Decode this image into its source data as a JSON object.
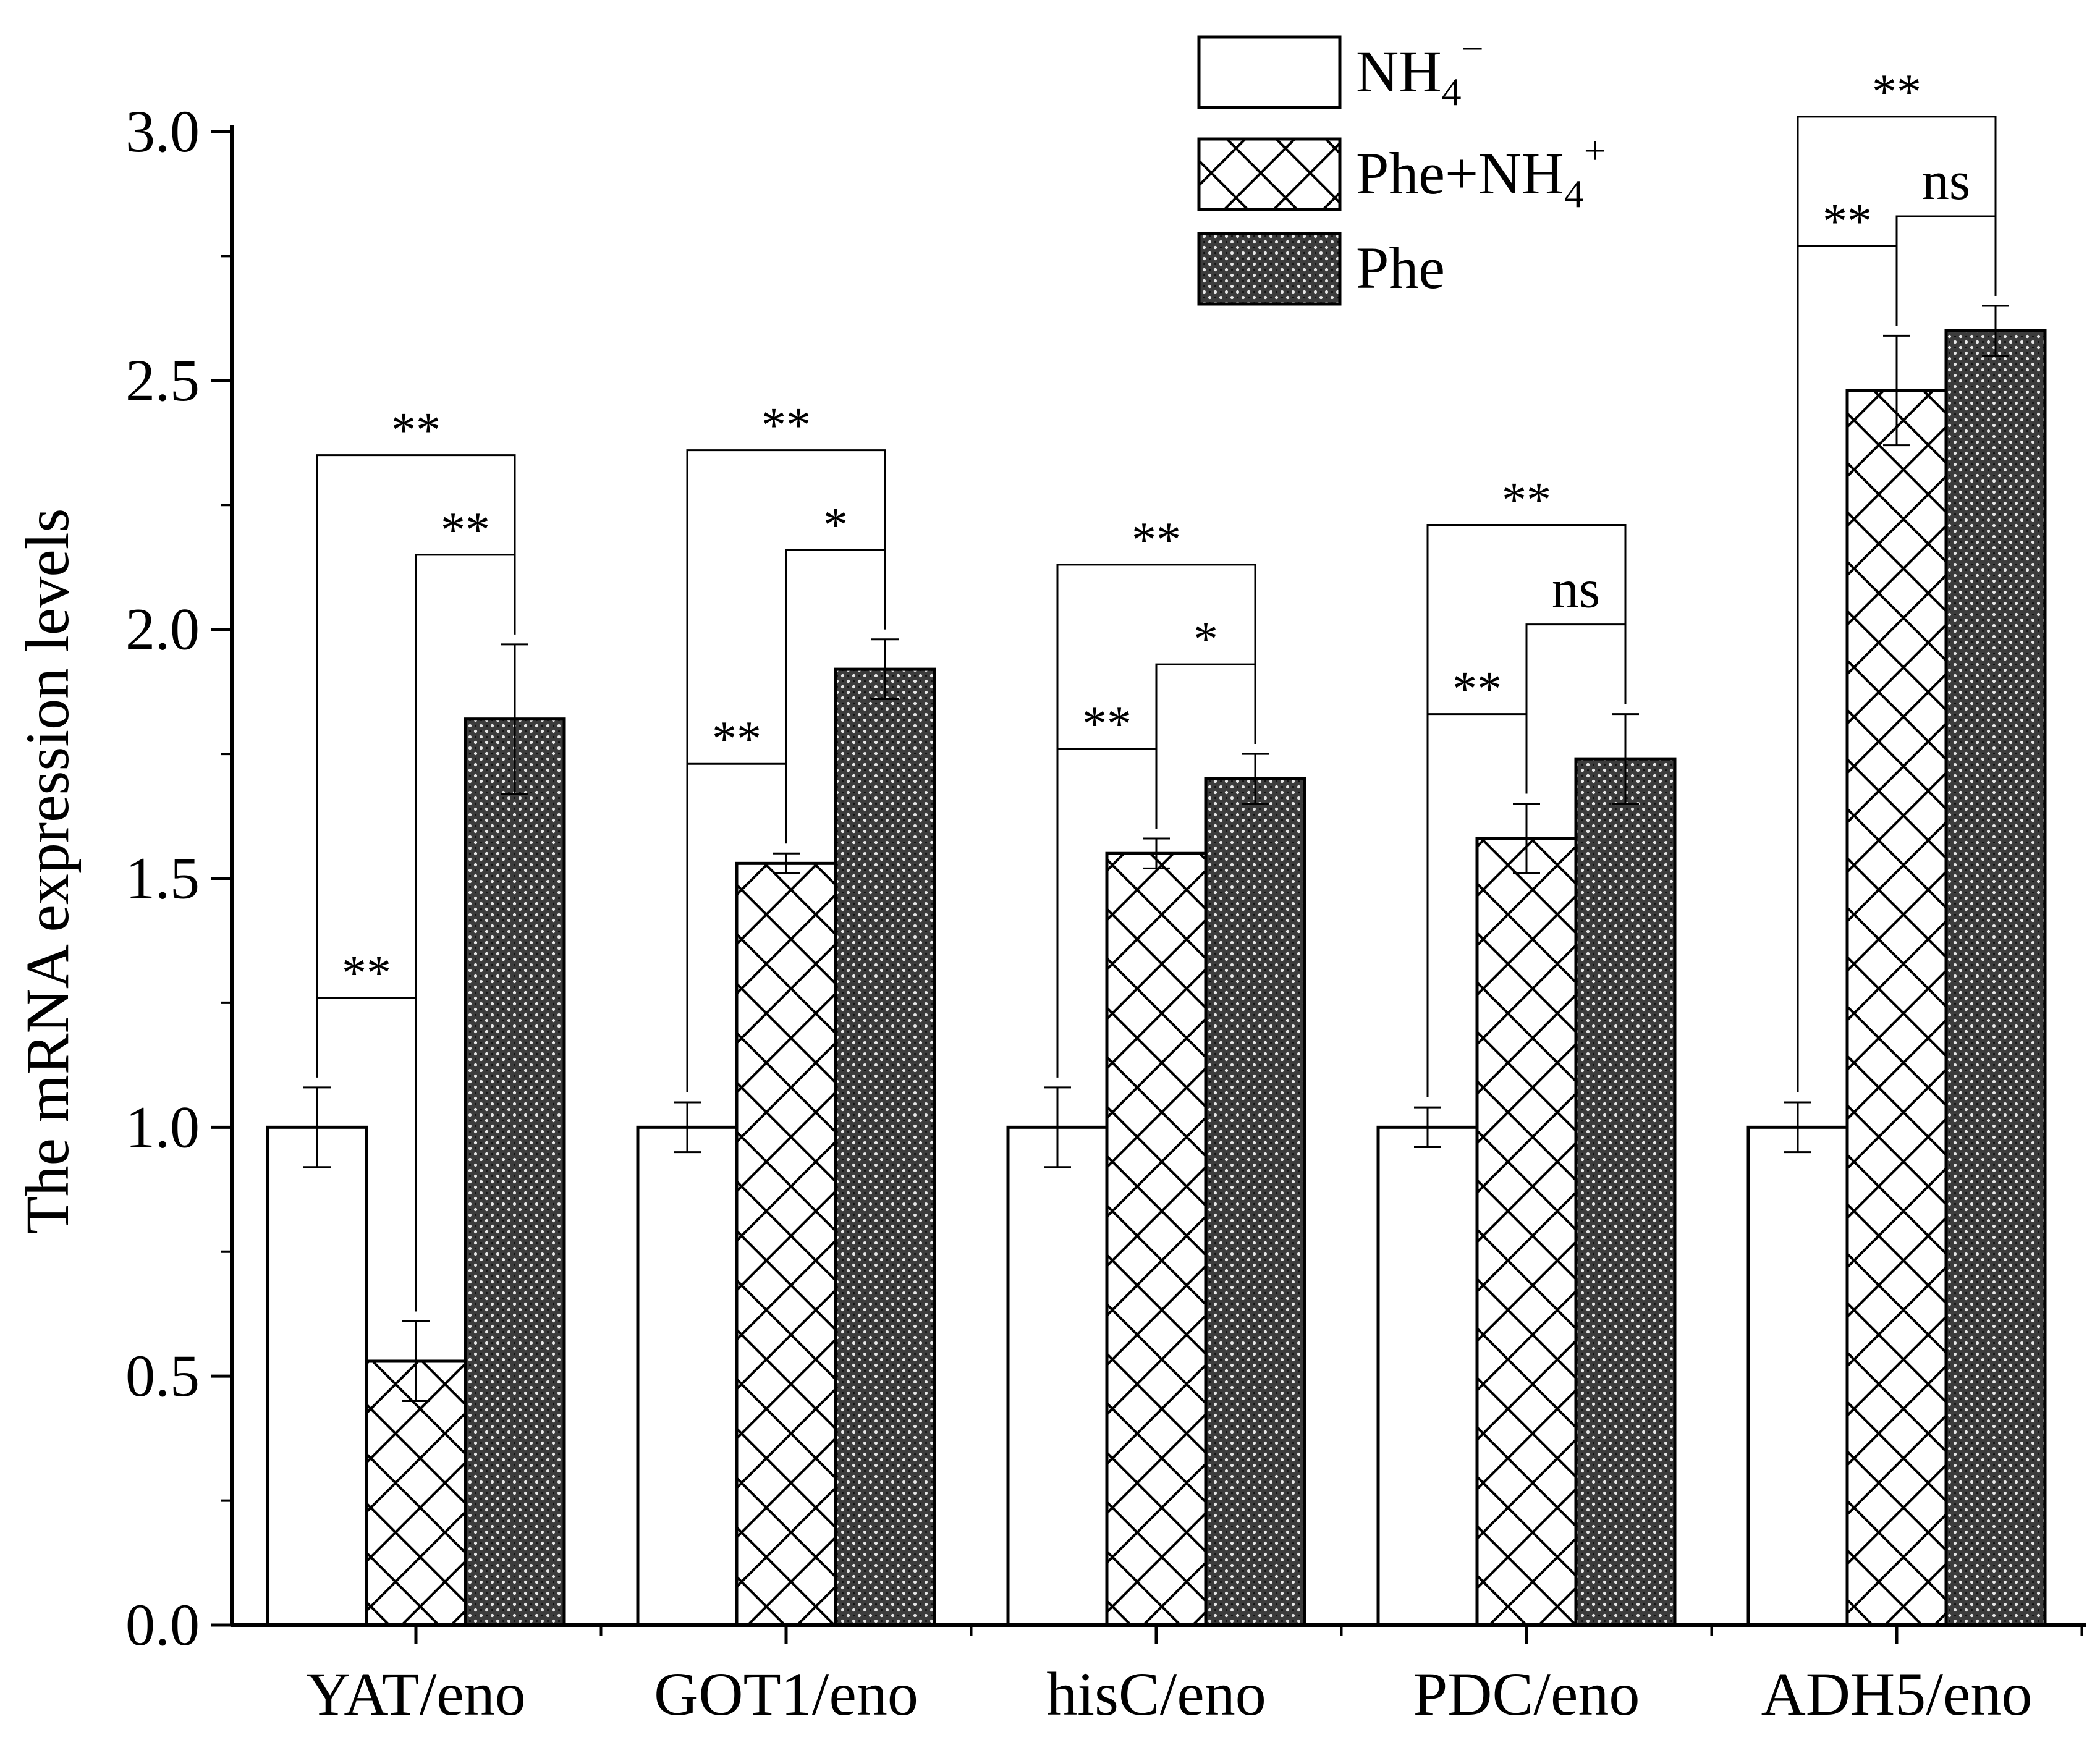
{
  "chart_data": {
    "type": "bar",
    "title": "",
    "xlabel": "",
    "ylabel": "The mRNA expression levels",
    "ylim": [
      0,
      3.0
    ],
    "yticks": [
      "0.0",
      "0.5",
      "1.0",
      "1.5",
      "2.0",
      "2.5",
      "3.0"
    ],
    "grid": false,
    "legend_position": "top-right",
    "categories": [
      "YAT/eno",
      "GOT1/eno",
      "hisC/eno",
      "PDC/eno",
      "ADH5/eno"
    ],
    "series": [
      {
        "name": "NH4−",
        "label_base": "NH",
        "label_sub": "4",
        "label_sup": "−",
        "pattern": "white",
        "values": [
          1.0,
          1.0,
          1.0,
          1.0,
          1.0
        ],
        "errors": [
          0.08,
          0.05,
          0.08,
          0.04,
          0.05
        ]
      },
      {
        "name": "Phe+NH4+",
        "label_base": "Phe+NH",
        "label_sub": "4",
        "label_sup": "+",
        "pattern": "crosshatch",
        "values": [
          0.53,
          1.53,
          1.55,
          1.58,
          2.48
        ],
        "errors": [
          0.08,
          0.02,
          0.03,
          0.07,
          0.11
        ]
      },
      {
        "name": "Phe",
        "label_base": "Phe",
        "label_sub": "",
        "label_sup": "",
        "pattern": "dots",
        "values": [
          1.82,
          1.92,
          1.7,
          1.74,
          2.6
        ],
        "errors": [
          0.15,
          0.06,
          0.05,
          0.09,
          0.05
        ]
      }
    ],
    "significance": [
      {
        "group": 0,
        "pair": [
          0,
          1
        ],
        "label": "**"
      },
      {
        "group": 0,
        "pair": [
          1,
          2
        ],
        "label": "**"
      },
      {
        "group": 0,
        "pair": [
          0,
          2
        ],
        "label": "**"
      },
      {
        "group": 1,
        "pair": [
          0,
          1
        ],
        "label": "**"
      },
      {
        "group": 1,
        "pair": [
          1,
          2
        ],
        "label": "*"
      },
      {
        "group": 1,
        "pair": [
          0,
          2
        ],
        "label": "**"
      },
      {
        "group": 2,
        "pair": [
          0,
          1
        ],
        "label": "**"
      },
      {
        "group": 2,
        "pair": [
          1,
          2
        ],
        "label": "*"
      },
      {
        "group": 2,
        "pair": [
          0,
          2
        ],
        "label": "**"
      },
      {
        "group": 3,
        "pair": [
          0,
          1
        ],
        "label": "**"
      },
      {
        "group": 3,
        "pair": [
          1,
          2
        ],
        "label": "ns"
      },
      {
        "group": 3,
        "pair": [
          0,
          2
        ],
        "label": "**"
      },
      {
        "group": 4,
        "pair": [
          0,
          1
        ],
        "label": "**"
      },
      {
        "group": 4,
        "pair": [
          1,
          2
        ],
        "label": "ns"
      },
      {
        "group": 4,
        "pair": [
          0,
          2
        ],
        "label": "**"
      }
    ]
  }
}
